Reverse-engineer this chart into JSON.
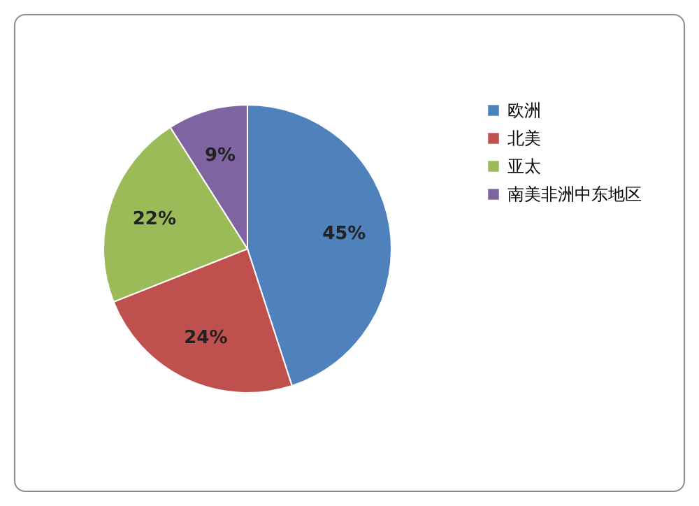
{
  "chart_data": {
    "type": "pie",
    "categories": [
      "欧洲",
      "北美",
      "亚太",
      "南美非洲中东地区"
    ],
    "values": [
      45,
      24,
      22,
      9
    ],
    "colors": [
      "#4f81bd",
      "#c0504d",
      "#9bbb59",
      "#8064a2"
    ],
    "value_labels": [
      "45%",
      "24%",
      "22%",
      "9%"
    ],
    "legend": "right"
  }
}
